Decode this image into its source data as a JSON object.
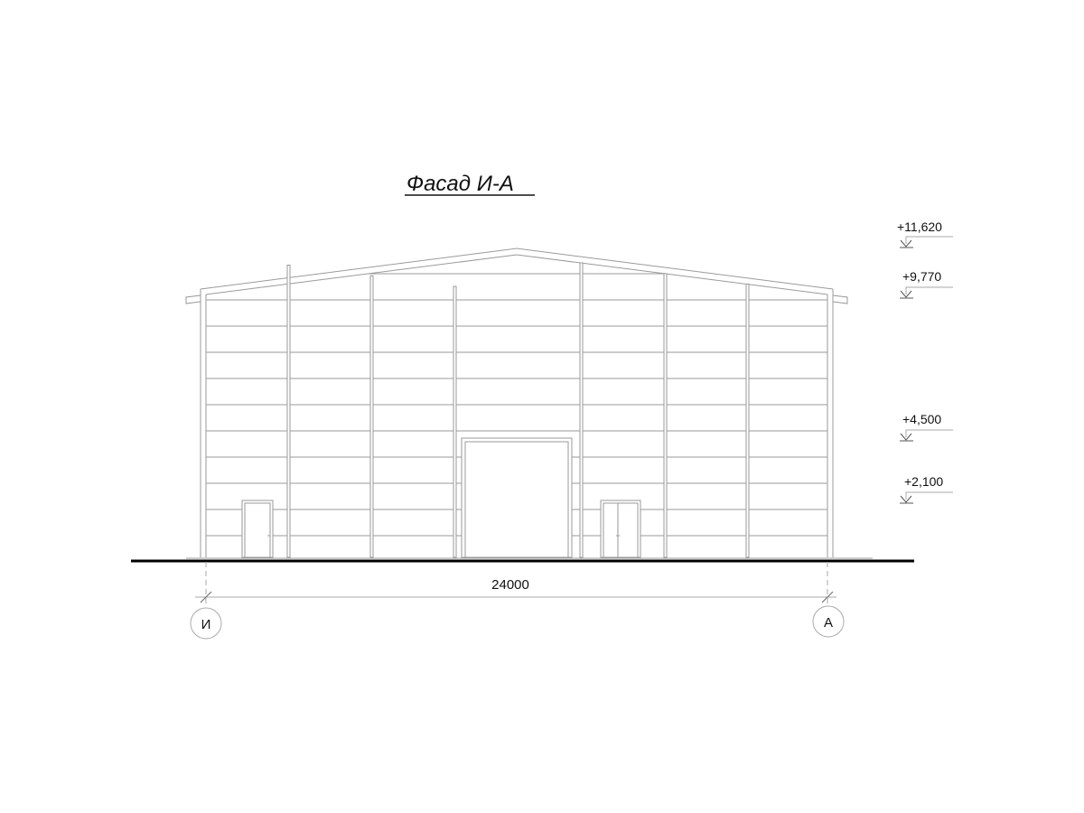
{
  "title": "Фасад И-А",
  "elevations": [
    {
      "label": "+11,620",
      "value_m": 11.62
    },
    {
      "label": "+9,770",
      "value_m": 9.77
    },
    {
      "label": "+4,500",
      "value_m": 4.5
    },
    {
      "label": "+2,100",
      "value_m": 2.1
    }
  ],
  "dimension": {
    "label": "24000"
  },
  "axes": {
    "left": "И",
    "right": "А"
  },
  "colors": {
    "line": "#9a9a9a",
    "ground": "#000000",
    "text": "#111111"
  }
}
